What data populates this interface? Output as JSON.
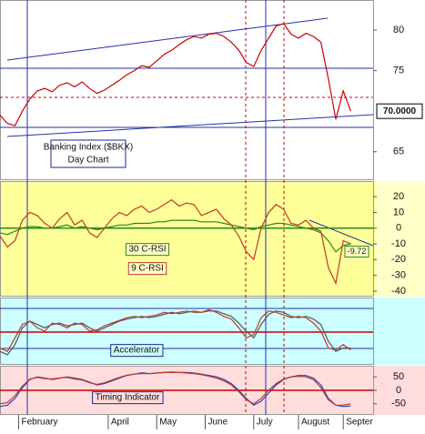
{
  "chart_data": [
    {
      "type": "line",
      "title": "Banking Index ($BKX)",
      "subtitle": "Day Chart",
      "x": [
        0,
        2,
        4,
        6,
        8,
        10,
        12,
        14,
        16,
        18,
        20,
        22,
        24,
        26,
        28,
        30,
        32,
        34,
        36,
        38,
        40,
        42,
        44,
        46,
        48,
        50,
        52,
        54,
        56,
        58,
        60,
        62,
        64,
        66,
        68,
        70,
        72,
        74,
        76,
        78,
        80,
        82,
        84,
        86,
        88,
        90,
        92,
        94
      ],
      "series": [
        {
          "color": "#cc0000",
          "values": [
            69.5,
            68.5,
            68.2,
            70,
            71.5,
            72.5,
            72.8,
            72.4,
            73.2,
            73.5,
            73,
            73.6,
            72.8,
            72.2,
            72.6,
            73.2,
            73.8,
            74.5,
            75,
            75.6,
            75.4,
            76.2,
            77,
            77.5,
            78.2,
            78.8,
            79.2,
            79,
            79.5,
            79.6,
            79.2,
            78.5,
            77.5,
            76,
            75.5,
            77.5,
            79,
            80.5,
            80.8,
            79.5,
            79,
            79.6,
            79.2,
            78.5,
            74,
            69,
            72.5,
            70
          ]
        }
      ],
      "marker": {
        "value": 70,
        "label": "70.0000"
      },
      "xlim": [
        0,
        100
      ],
      "ylim": [
        61.5,
        83.7
      ],
      "yticks": [
        65,
        75,
        80
      ]
    },
    {
      "type": "line",
      "x": [
        0,
        2,
        4,
        6,
        8,
        10,
        12,
        14,
        16,
        18,
        20,
        22,
        24,
        26,
        28,
        30,
        32,
        34,
        36,
        38,
        40,
        42,
        44,
        46,
        48,
        50,
        52,
        54,
        56,
        58,
        60,
        62,
        64,
        66,
        68,
        70,
        72,
        74,
        76,
        78,
        80,
        82,
        84,
        86,
        88,
        90,
        92,
        94
      ],
      "series": [
        {
          "name": "30 C-RSI",
          "color": "#2a8a1a",
          "values": [
            -3,
            -4,
            -2,
            0,
            1,
            1,
            0,
            0,
            1,
            2,
            0,
            1,
            0,
            -1,
            0,
            1,
            2,
            2,
            3,
            3,
            3,
            4,
            4,
            5,
            5,
            5,
            5,
            4,
            4,
            4,
            3,
            2,
            1,
            0,
            -1,
            1,
            2,
            3,
            3,
            2,
            1,
            0,
            -1,
            -3,
            -8,
            -15,
            -11,
            -10
          ]
        },
        {
          "name": "9 C-RSI",
          "color": "#c0392b",
          "values": [
            -5,
            -12,
            -8,
            5,
            10,
            8,
            3,
            0,
            6,
            10,
            2,
            5,
            -3,
            -6,
            0,
            6,
            10,
            8,
            12,
            14,
            10,
            12,
            15,
            18,
            14,
            16,
            15,
            8,
            10,
            12,
            6,
            2,
            -5,
            -15,
            -20,
            0,
            10,
            15,
            12,
            3,
            2,
            5,
            0,
            -2,
            -25,
            -35,
            -8,
            -10
          ]
        }
      ],
      "marker": -9.72,
      "xlim": [
        0,
        100
      ],
      "ylim": [
        -43.5,
        29.9
      ],
      "yticks": [
        -40,
        -30,
        -20,
        -10,
        0,
        10,
        20
      ]
    },
    {
      "type": "line",
      "title": "Accelerator",
      "x": [
        0,
        2,
        4,
        6,
        8,
        10,
        12,
        14,
        16,
        18,
        20,
        22,
        24,
        26,
        28,
        30,
        32,
        34,
        36,
        38,
        40,
        42,
        44,
        46,
        48,
        50,
        52,
        54,
        56,
        58,
        60,
        62,
        64,
        66,
        68,
        70,
        72,
        74,
        76,
        78,
        80,
        82,
        84,
        86,
        88,
        90,
        92,
        94
      ],
      "series": [
        {
          "color": "#555555",
          "values": [
            20,
            15,
            30,
            55,
            65,
            60,
            55,
            60,
            62,
            58,
            60,
            62,
            55,
            50,
            55,
            60,
            65,
            68,
            70,
            72,
            70,
            72,
            75,
            78,
            76,
            78,
            80,
            78,
            80,
            80,
            76,
            72,
            62,
            50,
            40,
            60,
            75,
            80,
            78,
            72,
            70,
            72,
            68,
            60,
            35,
            20,
            25,
            25
          ]
        },
        {
          "color": "#c0392b",
          "values": [
            25,
            20,
            40,
            60,
            65,
            55,
            50,
            62,
            60,
            55,
            62,
            60,
            50,
            52,
            58,
            62,
            66,
            70,
            72,
            70,
            72,
            74,
            78,
            76,
            78,
            80,
            78,
            78,
            82,
            78,
            72,
            68,
            55,
            40,
            45,
            70,
            80,
            78,
            74,
            70,
            72,
            70,
            62,
            50,
            25,
            22,
            30,
            22
          ]
        }
      ],
      "xlim": [
        0,
        100
      ],
      "ylim": [
        0,
        100
      ]
    },
    {
      "type": "line",
      "title": "Timing Indicator",
      "x": [
        0,
        2,
        4,
        6,
        8,
        10,
        12,
        14,
        16,
        18,
        20,
        22,
        24,
        26,
        28,
        30,
        32,
        34,
        36,
        38,
        40,
        42,
        44,
        46,
        48,
        50,
        52,
        54,
        56,
        58,
        60,
        62,
        64,
        66,
        68,
        70,
        72,
        74,
        76,
        78,
        80,
        82,
        84,
        86,
        88,
        90,
        92,
        94
      ],
      "series": [
        {
          "color": "#2b3fb8",
          "values": [
            -60,
            -55,
            -30,
            10,
            40,
            50,
            45,
            40,
            45,
            50,
            45,
            40,
            30,
            20,
            25,
            35,
            45,
            55,
            60,
            65,
            62,
            64,
            66,
            68,
            66,
            66,
            64,
            60,
            55,
            50,
            40,
            25,
            0,
            -30,
            -55,
            -40,
            -10,
            20,
            40,
            50,
            55,
            55,
            45,
            20,
            -30,
            -55,
            -60,
            -58
          ]
        },
        {
          "color": "#c0392b",
          "values": [
            -50,
            -45,
            -20,
            15,
            42,
            48,
            43,
            42,
            46,
            48,
            42,
            38,
            28,
            22,
            28,
            38,
            48,
            56,
            60,
            62,
            62,
            64,
            66,
            66,
            66,
            64,
            62,
            58,
            52,
            45,
            35,
            20,
            -5,
            -35,
            -50,
            -30,
            0,
            25,
            42,
            50,
            52,
            50,
            40,
            10,
            -35,
            -55,
            -55,
            -50
          ]
        }
      ],
      "xlim": [
        0,
        100
      ],
      "ylim": [
        -91,
        91
      ],
      "yticks": [
        -50,
        0,
        50
      ],
      "xticks": [
        {
          "value": 5,
          "label": "February"
        },
        {
          "value": 29,
          "label": "April"
        },
        {
          "value": 42,
          "label": "May"
        },
        {
          "value": 55,
          "label": "June"
        },
        {
          "value": 68,
          "label": "July"
        },
        {
          "value": 80,
          "label": "August"
        },
        {
          "value": 92,
          "label": "Septer"
        }
      ]
    }
  ]
}
